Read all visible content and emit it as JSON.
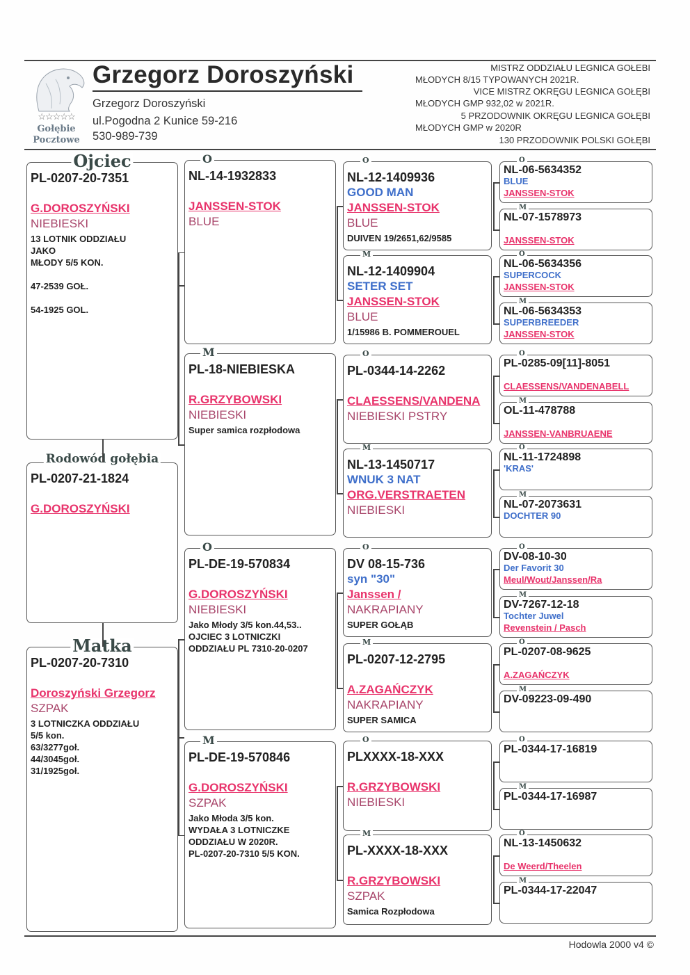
{
  "header": {
    "title": "Grzegorz Doroszyński",
    "owner_name": "Grzegorz Doroszyński",
    "address": "ul.Pogodna 2 Kunice 59-216",
    "phone": "530-989-739",
    "logo_text": [
      "Gołębie",
      "Pocztowe"
    ],
    "logo_icon": "eagle-head-icon",
    "achievements": [
      "MISTRZ ODDZIAŁU LEGNICA  GOŁEBI",
      "MŁODYCH 8/15 TYPOWANYCH 2021R.",
      "VICE MISTRZ OKRĘGU LEGNICA GOŁĘBI",
      "MŁODYCH GMP 932,02   w 2021R.",
      "5 PRZODOWNIK OKRĘGU LEGNICA GOŁĘBI",
      "MŁODYCH GMP w 2020R",
      "130 PRZODOWNIK POLSKI GOŁĘBI"
    ]
  },
  "colors": {
    "breeder": "#e8336b",
    "color_text": "#a8456a",
    "name": "#3f6fca"
  },
  "boxes": [
    {
      "label": "Ojciec",
      "ring": "PL-0207-20-7351",
      "name": "",
      "breeder": "G.DOROSZYŃSKI",
      "color": "NIEBIESKI",
      "notes": [
        "13 LOTNIK ODDZIAŁU",
        "JAKO",
        "MŁODY 5/5 KON.",
        "",
        "47-2539 GOŁ.",
        "",
        "54-1925 GOL."
      ]
    },
    {
      "label": "Rodowód gołębia",
      "ring": "PL-0207-21-1824",
      "name": "",
      "breeder": "G.DOROSZYŃSKI",
      "color": "",
      "notes": []
    },
    {
      "label": "Matka",
      "ring": "PL-0207-20-7310",
      "name": "",
      "breeder": "Doroszyński Grzegorz",
      "color": "SZPAK",
      "notes": [
        "3 LOTNICZKA ODDZIAŁU",
        "5/5 kon.",
        "63/3277goł.",
        "44/3045goł.",
        "31/1925goł."
      ]
    },
    {
      "label": "O",
      "ring": "NL-14-1932833",
      "name": "",
      "breeder": "JANSSEN-STOK",
      "color": "BLUE",
      "notes": []
    },
    {
      "label": "M",
      "ring": "PL-18-NIEBIESKA",
      "name": "",
      "breeder": "R.GRZYBOWSKI",
      "color": "NIEBIESKI",
      "notes": [
        "Super samica rozpłodowa"
      ]
    },
    {
      "label": "O",
      "ring": "PL-DE-19-570834",
      "name": "",
      "breeder": "G.DOROSZYŃSKI",
      "color": "NIEBIESKI",
      "notes": [
        "Jako Młody 3/5 kon.44,53..",
        "OJCIEC 3 LOTNICZKI",
        "ODDZIAŁU PL 7310-20-0207"
      ]
    },
    {
      "label": "M",
      "ring": "PL-DE-19-570846",
      "name": "",
      "breeder": "G.DOROSZYŃSKI",
      "color": "SZPAK",
      "notes": [
        "Jako Młoda 3/5 kon.",
        "WYDAŁA  3 LOTNICZKE",
        "ODDZIAŁU W 2020R.",
        "PL-0207-20-7310 5/5 KON."
      ]
    },
    {
      "label": "O",
      "ring": "NL-12-1409936",
      "name": "GOOD MAN",
      "breeder": "JANSSEN-STOK",
      "color": "BLUE",
      "notes": [
        "DUIVEN 19/2651,62/9585"
      ]
    },
    {
      "label": "M",
      "ring": "NL-12-1409904",
      "name": "SETER SET",
      "breeder": "JANSSEN-STOK",
      "color": "BLUE",
      "notes": [
        "1/15986 B. POMMEROUEL"
      ]
    },
    {
      "label": "O",
      "ring": "PL-0344-14-2262",
      "name": "",
      "breeder": "CLAESSENS/VANDENA",
      "color": "NIEBIESKI PSTRY",
      "notes": []
    },
    {
      "label": "M",
      "ring": "NL-13-1450717",
      "name": "WNUK 3 NAT",
      "breeder": "ORG.VERSTRAETEN",
      "color": "NIEBIESKI",
      "notes": []
    },
    {
      "label": "O",
      "ring": "DV 08-15-736",
      "name": "syn \"30\"",
      "breeder": "Janssen /",
      "color": "NAKRAPIANY",
      "notes": [
        "SUPER GOŁĄB"
      ]
    },
    {
      "label": "M",
      "ring": "PL-0207-12-2795",
      "name": "",
      "breeder": "A.ZAGAŃCZYK",
      "color": "NAKRAPIANY",
      "notes": [
        "SUPER SAMICA"
      ]
    },
    {
      "label": "O",
      "ring": "PLXXXX-18-XXX",
      "name": "",
      "breeder": "R.GRZYBOWSKI",
      "color": "NIEBIESKI",
      "notes": []
    },
    {
      "label": "M",
      "ring": "PL-XXXX-18-XXX",
      "name": "",
      "breeder": "R.GRZYBOWSKI",
      "color": "SZPAK",
      "notes": [
        "Samica Rozpłodowa"
      ]
    },
    {
      "label": "O",
      "ring": "NL-06-5634352",
      "name": "BLUE",
      "breeder": "JANSSEN-STOK",
      "color": "",
      "notes": []
    },
    {
      "label": "M",
      "ring": "NL-07-1578973",
      "name": "",
      "breeder": "JANSSEN-STOK",
      "color": "",
      "notes": []
    },
    {
      "label": "O",
      "ring": "NL-06-5634356",
      "name": "SUPERCOCK",
      "breeder": "JANSSEN-STOK",
      "color": "",
      "notes": []
    },
    {
      "label": "M",
      "ring": "NL-06-5634353",
      "name": "SUPERBREEDER",
      "breeder": "JANSSEN-STOK",
      "color": "",
      "notes": []
    },
    {
      "label": "O",
      "ring": "PL-0285-09[11]-8051",
      "name": "",
      "breeder": "CLAESSENS/VANDENABELL",
      "color": "",
      "notes": []
    },
    {
      "label": "M",
      "ring": "OL-11-478788",
      "name": "",
      "breeder": "JANSSEN-VANBRUAENE",
      "color": "",
      "notes": []
    },
    {
      "label": "O",
      "ring": "NL-11-1724898",
      "name": "'KRAS'",
      "breeder": "",
      "color": "",
      "notes": []
    },
    {
      "label": "M",
      "ring": "NL-07-2073631",
      "name": "DOCHTER 90",
      "breeder": "",
      "color": "",
      "notes": []
    },
    {
      "label": "O",
      "ring": "DV-08-10-30",
      "name": "Der Favorit 30",
      "breeder": "Meul/Wout/Janssen/Ra",
      "color": "",
      "notes": []
    },
    {
      "label": "M",
      "ring": "DV-7267-12-18",
      "name": "Tochter Juwel",
      "breeder": "Revenstein / Pasch",
      "color": "",
      "notes": []
    },
    {
      "label": "O",
      "ring": "PL-0207-08-9625",
      "name": "",
      "breeder": "A.ZAGAŃCZYK",
      "color": "",
      "notes": []
    },
    {
      "label": "M",
      "ring": "DV-09223-09-490",
      "name": "",
      "breeder": "",
      "color": "",
      "notes": []
    },
    {
      "label": "O",
      "ring": "PL-0344-17-16819",
      "name": "",
      "breeder": "",
      "color": "",
      "notes": []
    },
    {
      "label": "M",
      "ring": "PL-0344-17-16987",
      "name": "",
      "breeder": "",
      "color": "",
      "notes": []
    },
    {
      "label": "O",
      "ring": "NL-13-1450632",
      "name": "",
      "breeder": "De Weerd/Theelen",
      "color": "",
      "notes": []
    },
    {
      "label": "M",
      "ring": "PL-0344-17-22047",
      "name": "",
      "breeder": "",
      "color": "",
      "notes": []
    }
  ],
  "footer": "Hodowla 2000 v4 ©"
}
